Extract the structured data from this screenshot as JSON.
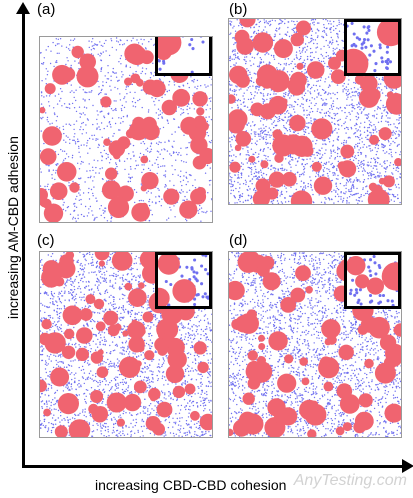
{
  "panels": [
    {
      "id": "a",
      "label": "(a)",
      "blue_density": 0.45,
      "red_coverage": 0.35
    },
    {
      "id": "b",
      "label": "(b)",
      "blue_density": 1.0,
      "red_coverage": 0.4
    },
    {
      "id": "c",
      "label": "(c)",
      "blue_density": 1.0,
      "red_coverage": 0.45
    },
    {
      "id": "d",
      "label": "(d)",
      "blue_density": 1.0,
      "red_coverage": 0.45
    }
  ],
  "axes": {
    "x_label": "increasing CBD-CBD cohesion",
    "y_label": "increasing AM-CBD adhesion"
  },
  "colors": {
    "active_material": "#f06470",
    "cbd": "#6f6ff0",
    "frame": "#000000"
  },
  "watermark": "AnyTesting.com"
}
